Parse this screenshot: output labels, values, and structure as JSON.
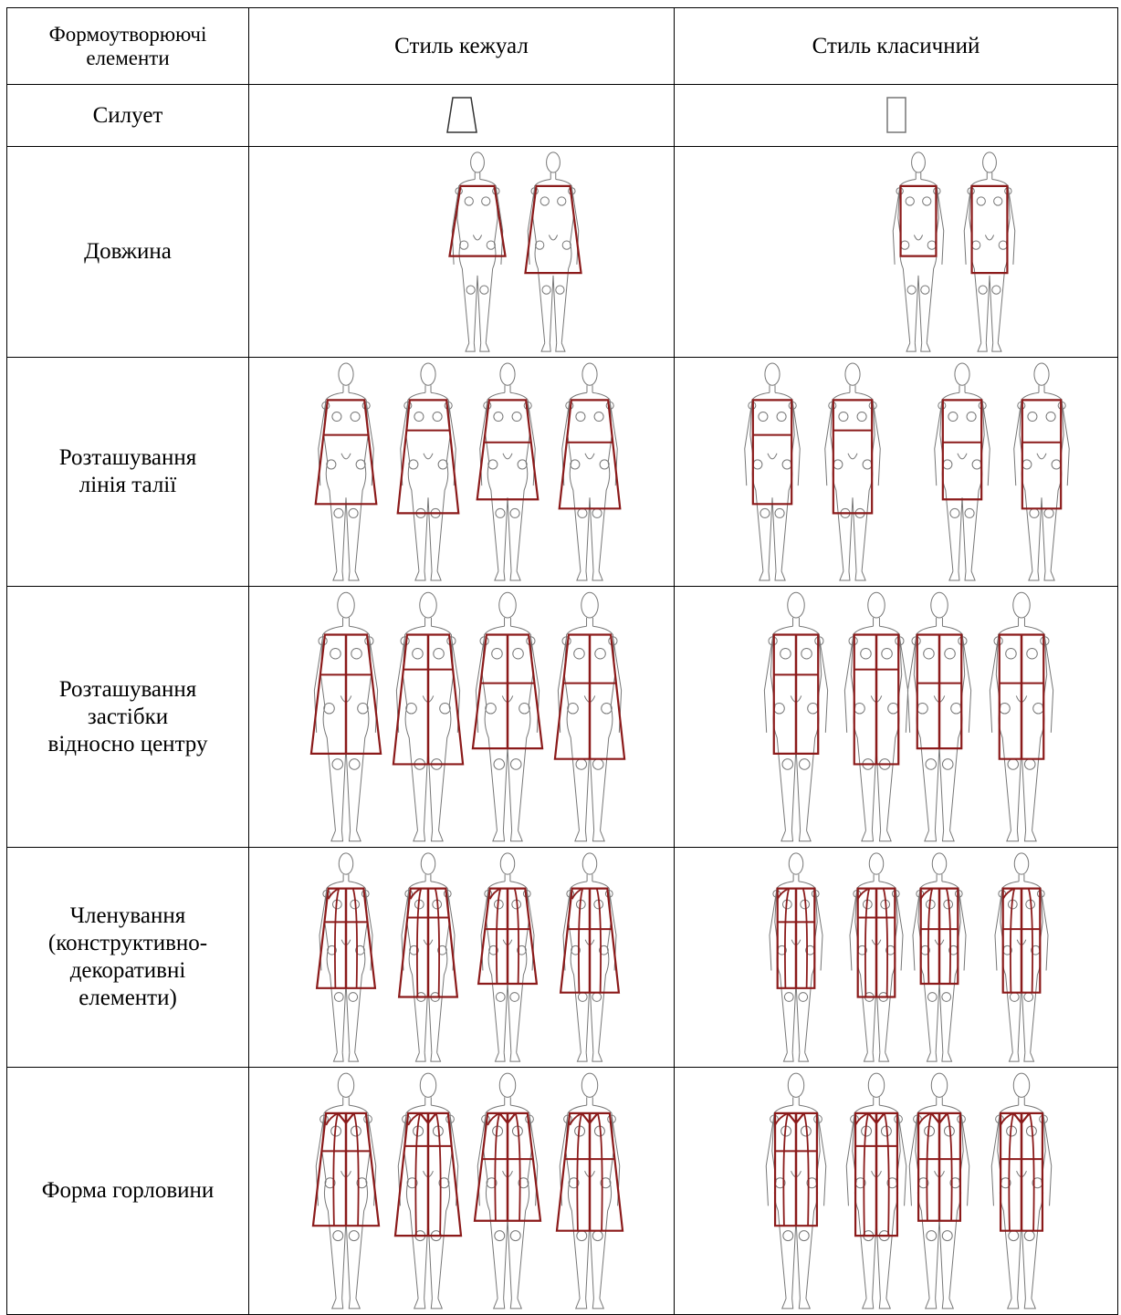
{
  "header": {
    "columns": [
      [
        "Формоутворюючі",
        "елементи"
      ],
      [
        "Стиль кежуал"
      ],
      [
        "Стиль класичний"
      ]
    ]
  },
  "rows": [
    {
      "label": [
        "Силует"
      ]
    },
    {
      "label": [
        "Довжина"
      ]
    },
    {
      "label": [
        "Розташування",
        "лінія талії"
      ]
    },
    {
      "label": [
        "Розташування",
        "застібки",
        "відносно центру"
      ]
    },
    {
      "label": [
        "Членування",
        "(конструктивно-",
        "декоративні",
        "елементи)"
      ]
    },
    {
      "label": [
        "Форма горловини"
      ]
    }
  ]
}
